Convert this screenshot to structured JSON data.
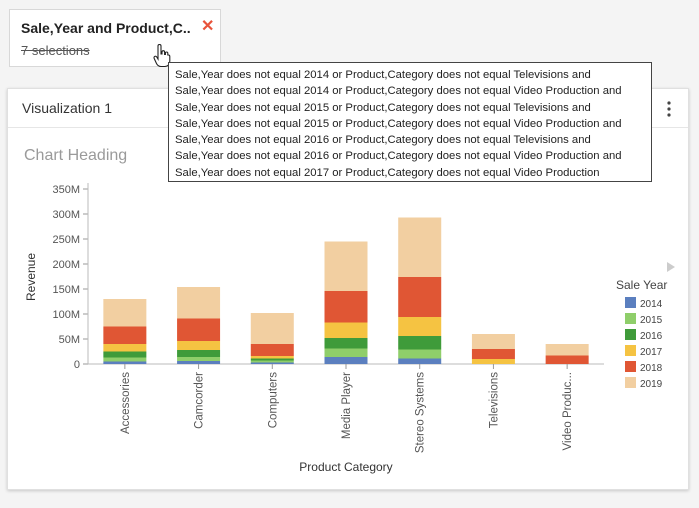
{
  "filter": {
    "title": "Sale,Year and Product,C...",
    "close_glyph": "✕",
    "selections_label": "7 selections",
    "tooltip_lines": [
      "Sale,Year does not equal 2014 or Product,Category does not equal Televisions and",
      "Sale,Year does not equal 2014 or Product,Category does not equal Video Production and",
      "Sale,Year does not equal 2015 or Product,Category does not equal Televisions and",
      "Sale,Year does not equal 2015 or Product,Category does not equal Video Production and",
      "Sale,Year does not equal 2016 or Product,Category does not equal Televisions and",
      "Sale,Year does not equal 2016 or Product,Category does not equal Video Production and",
      "Sale,Year does not equal 2017 or Product,Category does not equal Video Production"
    ]
  },
  "panel": {
    "title": "Visualization 1",
    "menu_icon": "kebab-menu-icon"
  },
  "chart_data": {
    "type": "bar",
    "stacked": true,
    "title": "Chart Heading",
    "xlabel": "Product Category",
    "ylabel": "Revenue",
    "ylim": [
      0,
      350000000
    ],
    "yticks": [
      0,
      50000000,
      100000000,
      150000000,
      200000000,
      250000000,
      300000000,
      350000000
    ],
    "ytick_labels": [
      "0",
      "50M",
      "100M",
      "150M",
      "200M",
      "250M",
      "300M",
      "350M"
    ],
    "categories": [
      "Accessories",
      "Camcorder",
      "Computers",
      "Media Player",
      "Stereo Systems",
      "Televisions",
      "Video Produc..."
    ],
    "legend_title": "Sale Year",
    "legend_position": "right",
    "series": [
      {
        "name": "2014",
        "color": "#5b7fbf",
        "values": [
          5000000,
          6000000,
          3000000,
          14000000,
          11000000,
          0,
          0
        ]
      },
      {
        "name": "2015",
        "color": "#8fce6a",
        "values": [
          8000000,
          8000000,
          4000000,
          17000000,
          18000000,
          0,
          0
        ]
      },
      {
        "name": "2016",
        "color": "#3f9b3a",
        "values": [
          12000000,
          14000000,
          4000000,
          21000000,
          27000000,
          0,
          0
        ]
      },
      {
        "name": "2017",
        "color": "#f5c342",
        "values": [
          15000000,
          18000000,
          5000000,
          31000000,
          38000000,
          10000000,
          0
        ]
      },
      {
        "name": "2018",
        "color": "#e05634",
        "values": [
          35000000,
          45000000,
          24000000,
          63000000,
          80000000,
          20000000,
          17000000
        ]
      },
      {
        "name": "2019",
        "color": "#f2cfa1",
        "values": [
          55000000,
          63000000,
          62000000,
          99000000,
          119000000,
          30000000,
          23000000
        ]
      }
    ]
  }
}
